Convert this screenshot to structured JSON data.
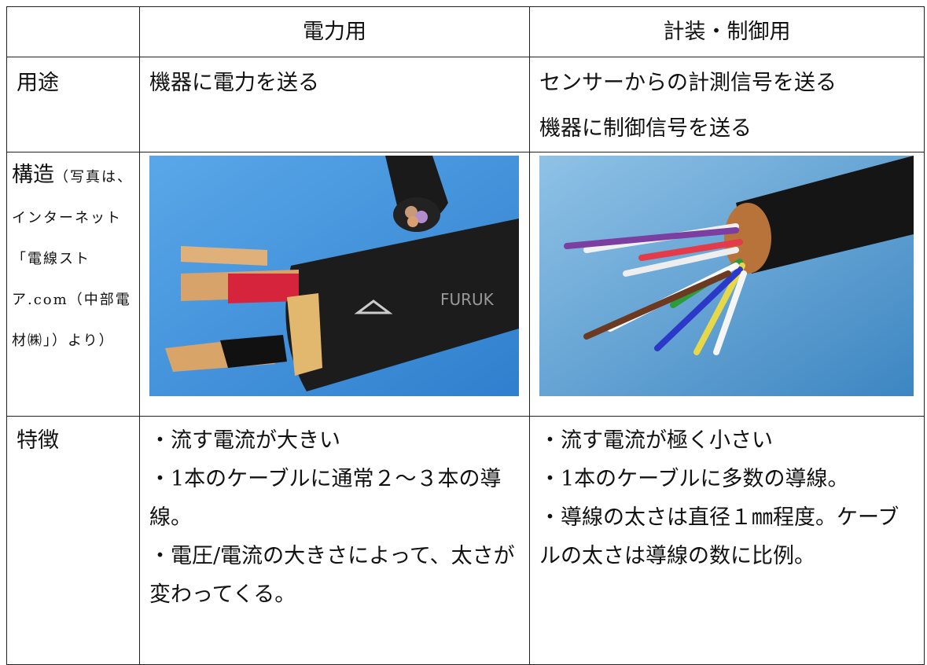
{
  "table": {
    "header": [
      "電力用",
      "計装・制御用"
    ],
    "rows": [
      {
        "label": "用途",
        "cells": [
          [
            "機器に電力を送る"
          ],
          [
            "センサーからの計測信号を送る",
            "機器に制御信号を送る"
          ]
        ]
      },
      {
        "label": "構造",
        "note": "（写真は、インターネット「電線ストア.com（中部電材㈱」）より）"
      },
      {
        "label": "特徴",
        "cells": [
          [
            "・流す電流が大きい",
            "・1本のケーブルに通常２～３本の導線。",
            "・電圧/電流の大きさによって、太さが変わってくる。"
          ],
          [
            "・流す電流が極く小さい",
            "・1本のケーブルに多数の導線。",
            "・導線の太さは直径１㎜程度。ケーブルの太さは導線の数に比例。"
          ]
        ]
      }
    ]
  }
}
